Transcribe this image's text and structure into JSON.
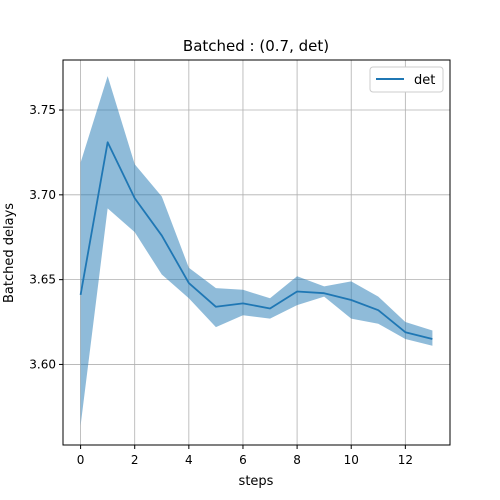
{
  "chart_data": {
    "type": "line",
    "title": "Batched : (0.7, det)",
    "xlabel": "steps",
    "ylabel": "Batched delays",
    "xlim": [
      -0.65,
      13.65
    ],
    "ylim": [
      3.5525,
      3.7795
    ],
    "x_ticks": [
      0,
      2,
      4,
      6,
      8,
      10,
      12
    ],
    "y_ticks": [
      3.6,
      3.65,
      3.7,
      3.75
    ],
    "y_tick_labels": [
      "3.60",
      "3.65",
      "3.70",
      "3.75"
    ],
    "grid": true,
    "legend_position": "top-right",
    "series": [
      {
        "name": "det",
        "color": "#1f77b4",
        "band_color": "#1f77b4",
        "x": [
          0,
          1,
          2,
          3,
          4,
          5,
          6,
          7,
          8,
          9,
          10,
          11,
          12,
          13
        ],
        "y": [
          3.641,
          3.731,
          3.698,
          3.676,
          3.648,
          3.634,
          3.636,
          3.633,
          3.643,
          3.642,
          3.638,
          3.632,
          3.619,
          3.615
        ],
        "lower": [
          3.564,
          3.692,
          3.678,
          3.653,
          3.639,
          3.622,
          3.629,
          3.627,
          3.635,
          3.64,
          3.627,
          3.624,
          3.615,
          3.611
        ],
        "upper": [
          3.719,
          3.77,
          3.718,
          3.699,
          3.657,
          3.645,
          3.644,
          3.639,
          3.652,
          3.646,
          3.649,
          3.64,
          3.625,
          3.62
        ]
      }
    ]
  }
}
